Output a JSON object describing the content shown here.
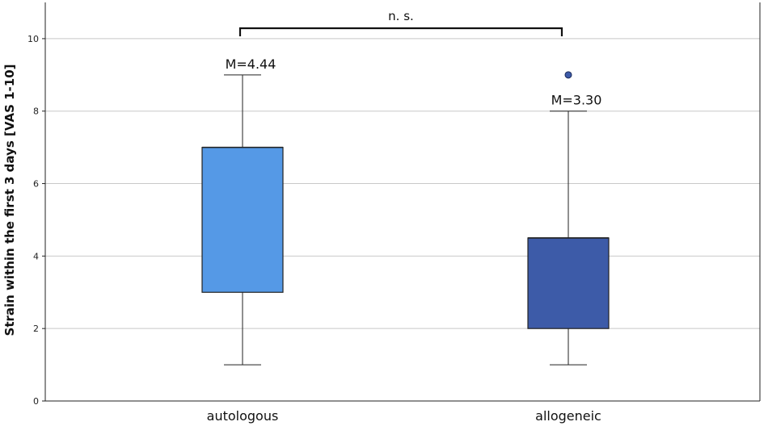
{
  "chart_data": {
    "type": "box",
    "title": "",
    "xlabel": "",
    "ylabel": "Strain within the first 3 days [VAS 1-10]",
    "ylim": [
      0,
      11
    ],
    "yticks": [
      0,
      2,
      4,
      6,
      8,
      10
    ],
    "ytick_labels": [
      "0",
      "2",
      "4",
      "6",
      "8",
      "10"
    ],
    "grid": true,
    "categories": [
      "autologous",
      "allogeneic"
    ],
    "boxes": [
      {
        "category": "autologous",
        "whisker_low": 1,
        "q1": 3,
        "median": 7,
        "q3": 7,
        "whisker_high": 9,
        "outliers": [],
        "mean_label": "M=4.44",
        "color": "#5599e6"
      },
      {
        "category": "allogeneic",
        "whisker_low": 1,
        "q1": 2,
        "median": 4.5,
        "q3": 4.5,
        "whisker_high": 8,
        "outliers": [
          9
        ],
        "mean_label": "M=3.30",
        "color": "#3d5ba8"
      }
    ],
    "annotations": [
      {
        "text": "n. s.",
        "between": [
          "autologous",
          "allogeneic"
        ]
      }
    ]
  }
}
